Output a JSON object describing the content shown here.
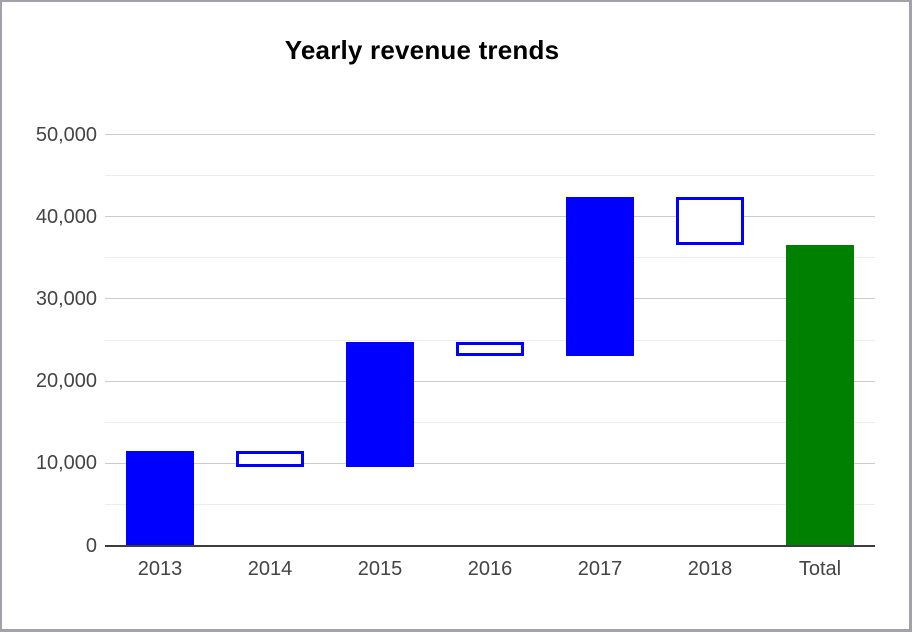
{
  "chart_data": {
    "type": "waterfall",
    "title": "Yearly revenue trends",
    "categories": [
      "2013",
      "2014",
      "2015",
      "2016",
      "2017",
      "2018",
      "Total"
    ],
    "bars": [
      {
        "label": "2013",
        "start": 0,
        "end": 11500,
        "change": 11500,
        "style": "increase"
      },
      {
        "label": "2014",
        "start": 11500,
        "end": 9500,
        "change": -2000,
        "style": "decrease"
      },
      {
        "label": "2015",
        "start": 9500,
        "end": 24700,
        "change": 15200,
        "style": "increase"
      },
      {
        "label": "2016",
        "start": 24700,
        "end": 23000,
        "change": -1700,
        "style": "decrease"
      },
      {
        "label": "2017",
        "start": 23000,
        "end": 42400,
        "change": 19400,
        "style": "increase"
      },
      {
        "label": "2018",
        "start": 42400,
        "end": 36500,
        "change": -5900,
        "style": "decrease"
      },
      {
        "label": "Total",
        "start": 0,
        "end": 36500,
        "change": 36500,
        "style": "total"
      }
    ],
    "y_axis": {
      "ticks": [
        "0",
        "10,000",
        "20,000",
        "30,000",
        "40,000",
        "50,000"
      ],
      "tick_values": [
        0,
        10000,
        20000,
        30000,
        40000,
        50000
      ],
      "minor_gridline_interval": 5000,
      "ylim": [
        0,
        50000
      ]
    },
    "xlabel": "",
    "ylabel": "",
    "legend": "none",
    "grid": "on",
    "colors": {
      "increase_fill": "#0000ff",
      "decrease_fill": "#ffffff",
      "decrease_border": "#0000ff",
      "total_fill": "#008000",
      "grid_major": "#cccccc",
      "grid_minor": "#ececec",
      "baseline": "#3d3d3d",
      "axis_label": "#444444",
      "title": "#000000",
      "background": "#ffffff",
      "frame_border": "#a2a2a8"
    }
  }
}
